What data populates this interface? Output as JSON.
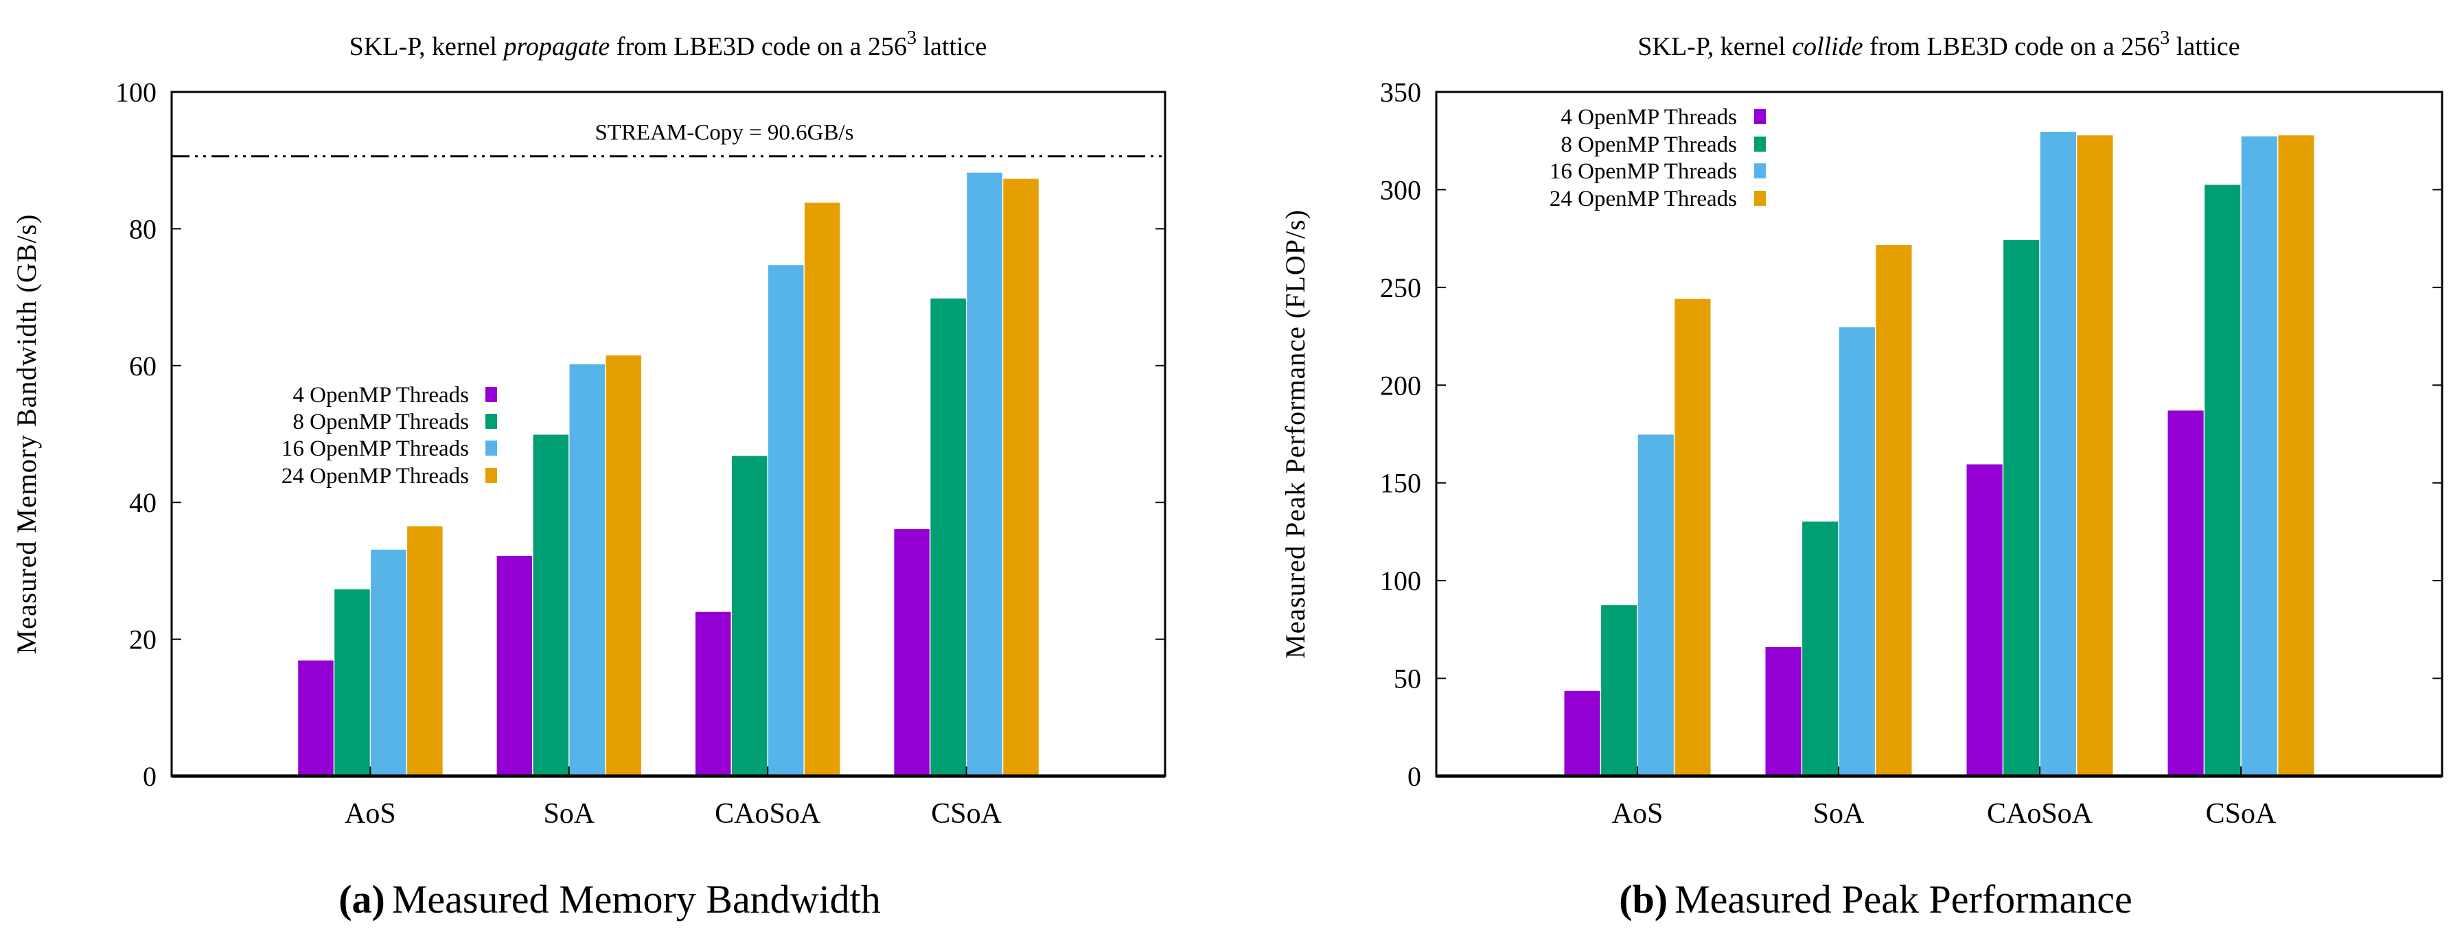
{
  "chart_data": [
    {
      "type": "bar",
      "title_prefix": "SKL-P, kernel ",
      "title_kernel": "propagate",
      "title_mid": " from LBE3D code on a 256",
      "title_sup": "3",
      "title_suffix": " lattice",
      "caption_letter": "(a)",
      "caption_text": "Measured Memory Bandwidth",
      "xlabel": "",
      "ylabel": "Measured Memory Bandwidth (GB/s)",
      "ylim": [
        0,
        100
      ],
      "yticks": [
        0,
        20,
        40,
        60,
        80,
        100
      ],
      "categories": [
        "AoS",
        "SoA",
        "CAoSoA",
        "CSoA"
      ],
      "legend_position": "center-left",
      "series": [
        {
          "name": "4 OpenMP Threads",
          "color": "#9400d3",
          "values": [
            16.9,
            32.2,
            24.0,
            36.1
          ]
        },
        {
          "name": "8 OpenMP Threads",
          "color": "#009e73",
          "values": [
            27.3,
            49.9,
            46.8,
            69.8
          ]
        },
        {
          "name": "16 OpenMP Threads",
          "color": "#56b4e9",
          "values": [
            33.1,
            60.2,
            74.7,
            88.2
          ]
        },
        {
          "name": "24 OpenMP Threads",
          "color": "#e69f00",
          "values": [
            36.5,
            61.5,
            83.8,
            87.3
          ]
        }
      ],
      "reference_line": {
        "label": "STREAM-Copy = 90.6GB/s",
        "value": 90.6
      }
    },
    {
      "type": "bar",
      "title_prefix": "SKL-P, kernel ",
      "title_kernel": "collide",
      "title_mid": " from LBE3D code on a 256",
      "title_sup": "3",
      "title_suffix": " lattice",
      "caption_letter": "(b)",
      "caption_text": "Measured Peak Performance",
      "xlabel": "",
      "ylabel": "Measured Peak Performance (FLOP/s)",
      "ylim": [
        0,
        350
      ],
      "yticks": [
        0,
        50,
        100,
        150,
        200,
        250,
        300,
        350
      ],
      "categories": [
        "AoS",
        "SoA",
        "CAoSoA",
        "CSoA"
      ],
      "legend_position": "top-left",
      "series": [
        {
          "name": "4 OpenMP Threads",
          "color": "#9400d3",
          "values": [
            43.6,
            66,
            159.5,
            187
          ]
        },
        {
          "name": "8 OpenMP Threads",
          "color": "#009e73",
          "values": [
            87.4,
            130.2,
            274.2,
            302.5
          ]
        },
        {
          "name": "16 OpenMP Threads",
          "color": "#56b4e9",
          "values": [
            174.7,
            229.6,
            329.6,
            327.3
          ]
        },
        {
          "name": "24 OpenMP Threads",
          "color": "#e69f00",
          "values": [
            244.1,
            271.7,
            327.8,
            327.8
          ]
        }
      ]
    }
  ]
}
